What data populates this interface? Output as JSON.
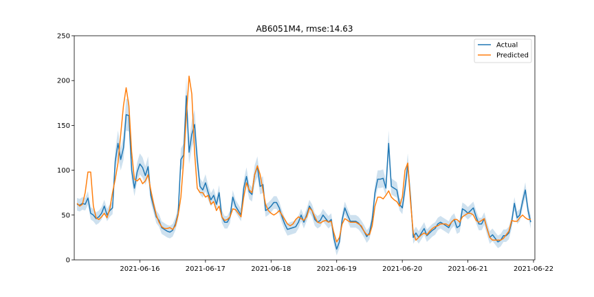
{
  "chart_data": {
    "type": "line",
    "title": "AB6051M4, rmse:14.63",
    "xlabel": "",
    "ylabel": "",
    "x_start": "2021-06-15T01:00",
    "x_step_hours": 1,
    "xlim": [
      "2021-06-15T00:00",
      "2021-06-22T00:30"
    ],
    "ylim": [
      0,
      250
    ],
    "x_tick_labels": [
      "2021-06-16",
      "2021-06-17",
      "2021-06-18",
      "2021-06-19",
      "2021-06-20",
      "2021-06-21",
      "2021-06-22"
    ],
    "y_ticks": [
      0,
      50,
      100,
      150,
      200,
      250
    ],
    "legend_position": "top-right",
    "grid": false,
    "series": [
      {
        "name": "Actual",
        "color": "#1f77b4",
        "values": [
          62,
          61,
          63,
          62,
          69,
          52,
          50,
          46,
          48,
          52,
          60,
          50,
          55,
          58,
          110,
          130,
          112,
          125,
          162,
          161,
          100,
          80,
          98,
          107,
          103,
          94,
          104,
          72,
          60,
          48,
          44,
          36,
          34,
          32,
          31,
          33,
          40,
          52,
          112,
          117,
          183,
          120,
          140,
          151,
          112,
          82,
          78,
          86,
          75,
          67,
          72,
          62,
          75,
          48,
          42,
          42,
          48,
          70,
          60,
          55,
          50,
          80,
          93,
          76,
          73,
          95,
          104,
          82,
          84,
          55,
          57,
          60,
          64,
          64,
          58,
          48,
          40,
          34,
          35,
          36,
          37,
          42,
          50,
          42,
          50,
          60,
          55,
          45,
          42,
          44,
          50,
          46,
          42,
          45,
          24,
          12,
          20,
          45,
          58,
          50,
          43,
          43,
          43,
          41,
          37,
          32,
          26,
          30,
          45,
          75,
          90,
          90,
          91,
          80,
          130,
          82,
          80,
          78,
          62,
          58,
          80,
          107,
          70,
          25,
          30,
          25,
          30,
          35,
          27,
          30,
          33,
          35,
          40,
          42,
          40,
          38,
          36,
          42,
          45,
          36,
          38,
          57,
          55,
          52,
          55,
          58,
          48,
          40,
          40,
          46,
          35,
          25,
          28,
          24,
          20,
          22,
          27,
          27,
          30,
          42,
          63,
          47,
          50,
          65,
          78,
          55,
          42
        ]
      },
      {
        "name": "Predicted",
        "color": "#ff7f0e",
        "values": [
          63,
          60,
          62,
          75,
          98,
          98,
          60,
          47,
          45,
          48,
          52,
          47,
          57,
          75,
          90,
          108,
          140,
          172,
          192,
          172,
          120,
          90,
          88,
          91,
          85,
          88,
          95,
          78,
          63,
          50,
          42,
          37,
          35,
          35,
          36,
          34,
          38,
          50,
          70,
          110,
          160,
          205,
          185,
          120,
          80,
          75,
          75,
          70,
          72,
          62,
          65,
          55,
          60,
          48,
          44,
          45,
          48,
          57,
          56,
          52,
          48,
          70,
          86,
          78,
          75,
          95,
          105,
          95,
          78,
          62,
          55,
          52,
          50,
          52,
          55,
          50,
          45,
          40,
          38,
          40,
          45,
          48,
          46,
          44,
          48,
          58,
          55,
          48,
          42,
          41,
          43,
          44,
          42,
          43,
          30,
          20,
          25,
          40,
          46,
          44,
          42,
          42,
          42,
          40,
          38,
          32,
          28,
          28,
          38,
          60,
          70,
          70,
          68,
          72,
          77,
          70,
          67,
          65,
          60,
          70,
          100,
          108,
          65,
          30,
          22,
          25,
          28,
          30,
          28,
          32,
          35,
          37,
          38,
          40,
          40,
          40,
          38,
          42,
          45,
          45,
          42,
          48,
          50,
          52,
          52,
          50,
          44,
          42,
          44,
          46,
          35,
          25,
          22,
          22,
          22,
          22,
          24,
          28,
          32,
          44,
          43,
          43,
          47,
          50,
          47,
          45,
          45
        ]
      }
    ]
  }
}
